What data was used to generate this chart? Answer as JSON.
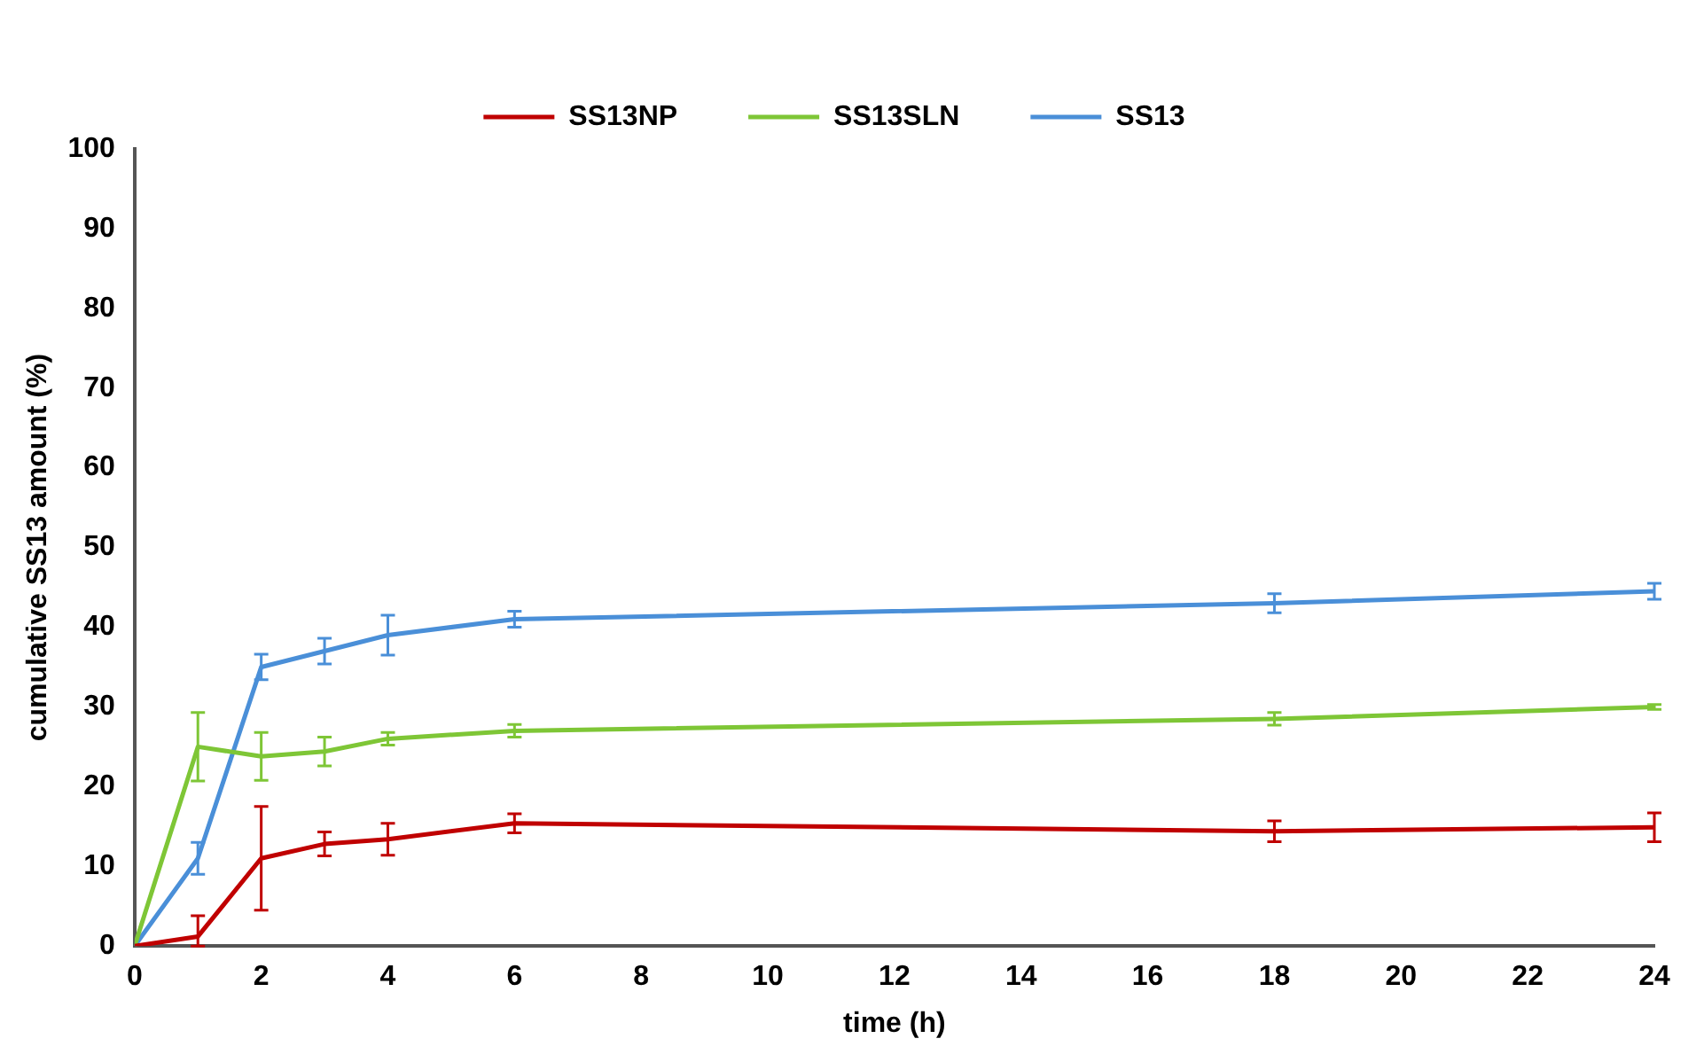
{
  "chart_data": {
    "type": "line",
    "xlabel": "time (h)",
    "ylabel": "cumulative SS13 amount (%)",
    "x": [
      0,
      1,
      2,
      3,
      4,
      6,
      18,
      24
    ],
    "series": [
      {
        "name": "SS13NP",
        "color": "#c00000",
        "values": [
          0,
          1.2,
          11,
          12.8,
          13.4,
          15.4,
          14.4,
          14.9
        ],
        "errors": [
          null,
          [
            0,
            3.8
          ],
          6.5,
          1.5,
          2,
          1.2,
          1.3,
          1.8
        ]
      },
      {
        "name": "SS13SLN",
        "color": "#7ec636",
        "values": [
          0,
          25,
          23.8,
          24.4,
          26,
          27,
          28.5,
          30
        ],
        "errors": [
          null,
          4.3,
          3,
          1.8,
          0.8,
          0.8,
          0.8,
          0.3
        ]
      },
      {
        "name": "SS13",
        "color": "#4a8fd8",
        "values": [
          0,
          11,
          35,
          37,
          39,
          41,
          43,
          44.5
        ],
        "errors": [
          null,
          2,
          1.6,
          1.6,
          2.5,
          1,
          1.2,
          1
        ]
      }
    ],
    "xlim": [
      0,
      24
    ],
    "xticks": [
      0,
      2,
      4,
      6,
      8,
      10,
      12,
      14,
      16,
      18,
      20,
      22,
      24
    ],
    "ylim": [
      0,
      100
    ],
    "yticks": [
      0,
      10,
      20,
      30,
      40,
      50,
      60,
      70,
      80,
      90,
      100
    ],
    "grid": false,
    "legend": "top",
    "marker": "none",
    "line_style": "solid"
  }
}
